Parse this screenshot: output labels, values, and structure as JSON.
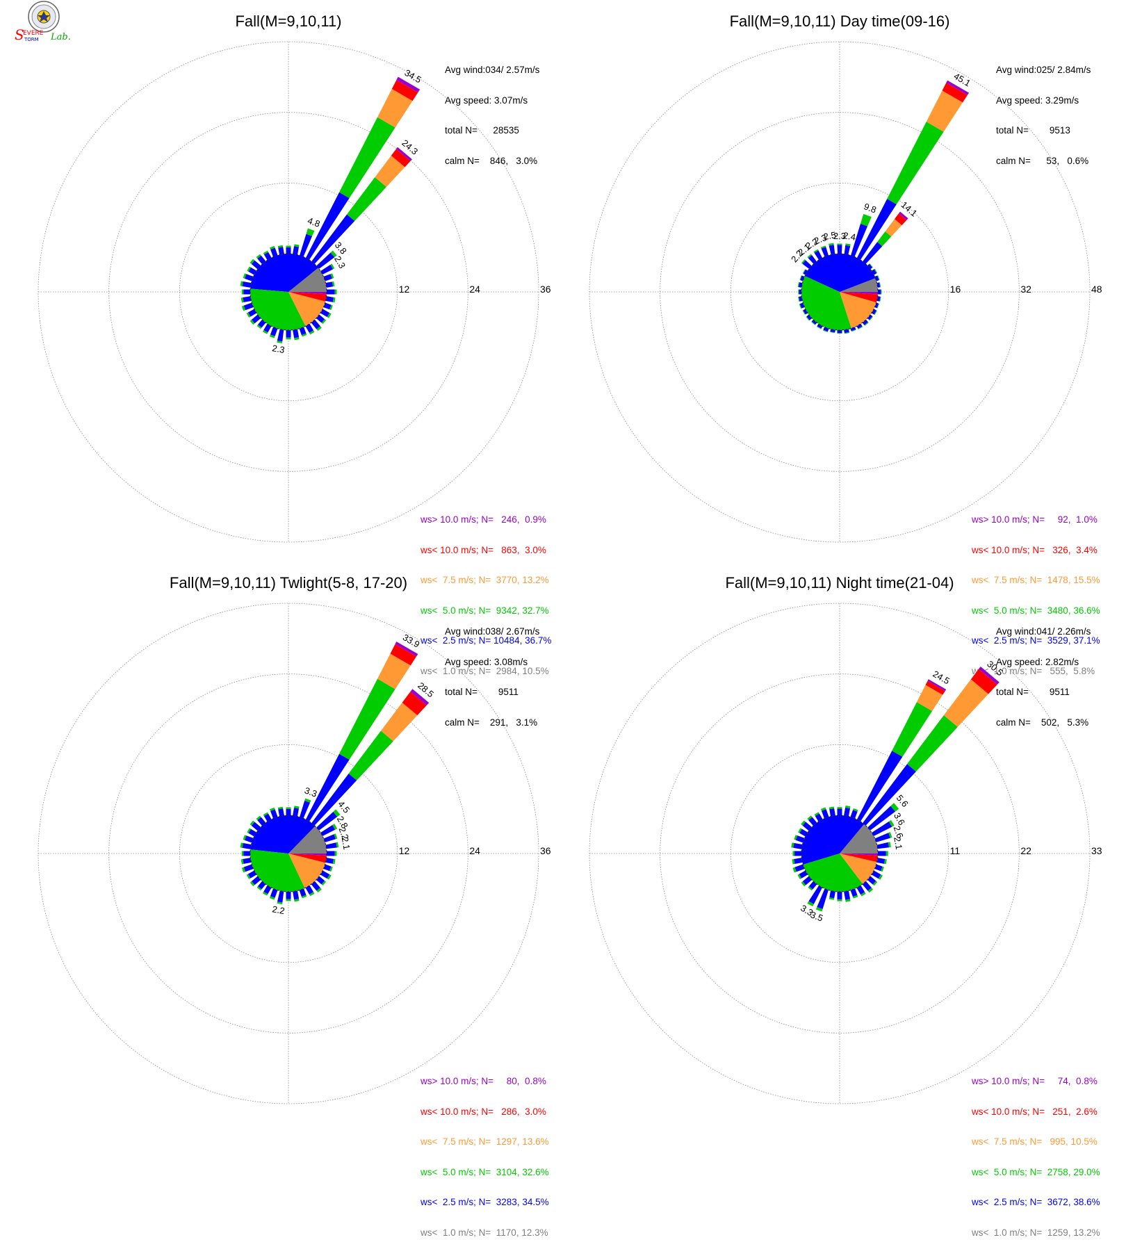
{
  "colors": {
    "gt10": "#9900cc",
    "lt10": "#ff0000",
    "lt7_5": "#ff9933",
    "lt5": "#00cc00",
    "lt2_5": "#0000ff",
    "lt1": "#808080",
    "grid": "#888888"
  },
  "logo": {
    "text_s": "S",
    "text_evere": "EVERE",
    "text_torm": "TORM",
    "text_lab": "Lab."
  },
  "chart_data": [
    {
      "type": "windrose",
      "title": "Fall(M=9,10,11)",
      "info": [
        "Avg wind:034/ 2.57m/s",
        "Avg speed: 3.07m/s",
        "total N=      28535",
        "calm N=    846,   3.0%"
      ],
      "rings": [
        "12",
        "24",
        "36"
      ],
      "rmax": 36,
      "legend": [
        "ws> 10.0 m/s; N=   246,  0.9%",
        "ws< 10.0 m/s; N=   863,  3.0%",
        "ws<  7.5 m/s; N=  3770, 13.2%",
        "ws<  5.0 m/s; N=  9342, 32.7%",
        "ws<  2.5 m/s; N= 10484, 36.7%",
        "ws<  1.0 m/s; N=  2984, 10.5%"
      ],
      "pie": [
        10.5,
        36.7,
        32.7,
        13.2,
        3.0,
        0.9
      ],
      "spokes": [
        {
          "dir": 30,
          "total": 34.5,
          "label": "34.5",
          "segs": [
            12.5,
            26.8,
            32.2,
            33.9,
            34.5
          ]
        },
        {
          "dir": 40,
          "total": 24.3,
          "label": "24.3",
          "segs": [
            10.0,
            17.9,
            22.5,
            23.9,
            24.3
          ]
        },
        {
          "dir": 20,
          "total": 4.8,
          "label": "4.8",
          "segs": [
            3.8,
            4.8,
            4.8,
            4.8,
            4.8
          ]
        },
        {
          "dir": 50,
          "total": 3.8,
          "label": "3.8",
          "segs": [
            3.3,
            3.8,
            3.8,
            3.8,
            3.8
          ]
        },
        {
          "dir": 60,
          "total": 2.3,
          "label": "2.3",
          "segs": [
            2.0,
            2.3,
            2.3,
            2.3,
            2.3
          ]
        },
        {
          "dir": 190,
          "total": 2.3,
          "label": "2.3",
          "segs": [
            2.0,
            2.3,
            2.3,
            2.3,
            2.3
          ]
        }
      ],
      "smallSpokeTotal": 1.6
    },
    {
      "type": "windrose",
      "title": "Fall(M=9,10,11) Day time(09-16)",
      "info": [
        "Avg wind:025/ 2.84m/s",
        "Avg speed: 3.29m/s",
        "total N=        9513",
        "calm N=      53,   0.6%"
      ],
      "rings": [
        "16",
        "32",
        "48"
      ],
      "rmax": 48,
      "legend": [
        "ws> 10.0 m/s; N=     92,  1.0%",
        "ws< 10.0 m/s; N=   326,  3.4%",
        "ws<  7.5 m/s; N=  1478, 15.5%",
        "ws<  5.0 m/s; N=  3480, 36.6%",
        "ws<  2.5 m/s; N=  3529, 37.1%",
        "ws<  1.0 m/s; N=   555,  5.8%"
      ],
      "pie": [
        5.8,
        37.1,
        36.6,
        15.5,
        3.4,
        1.0
      ],
      "spokes": [
        {
          "dir": 30,
          "total": 45.1,
          "label": "45.1",
          "segs": [
            15.0,
            34.6,
            42.5,
            44.5,
            45.1
          ]
        },
        {
          "dir": 40,
          "total": 14.1,
          "label": "14.1",
          "segs": [
            5.5,
            8.5,
            12.0,
            13.6,
            14.1
          ]
        },
        {
          "dir": 20,
          "total": 9.8,
          "label": "9.8",
          "segs": [
            7.5,
            9.8,
            9.8,
            9.8,
            9.8
          ]
        },
        {
          "dir": 10,
          "total": 2.4,
          "label": "2.4",
          "segs": [
            2.0,
            2.4,
            2.4,
            2.4,
            2.4
          ]
        },
        {
          "dir": 0,
          "total": 2.3,
          "label": "2.3",
          "segs": [
            2.0,
            2.3,
            2.3,
            2.3,
            2.3
          ]
        },
        {
          "dir": 350,
          "total": 2.5,
          "label": "2.5",
          "segs": [
            2.1,
            2.5,
            2.5,
            2.5,
            2.5
          ]
        },
        {
          "dir": 340,
          "total": 2.3,
          "label": "2.3",
          "segs": [
            2.0,
            2.3,
            2.3,
            2.3,
            2.3
          ]
        },
        {
          "dir": 330,
          "total": 2.2,
          "label": "2.2",
          "segs": [
            1.9,
            2.2,
            2.2,
            2.2,
            2.2
          ]
        },
        {
          "dir": 320,
          "total": 2.1,
          "label": "2.1",
          "segs": [
            1.8,
            2.1,
            2.1,
            2.1,
            2.1
          ]
        },
        {
          "dir": 310,
          "total": 2.2,
          "label": "2.2",
          "segs": [
            1.9,
            2.2,
            2.2,
            2.2,
            2.2
          ]
        }
      ],
      "smallSpokeTotal": 0.8
    },
    {
      "type": "windrose",
      "title": "Fall(M=9,10,11) Twlight(5-8, 17-20)",
      "info": [
        "Avg wind:038/ 2.67m/s",
        "Avg speed: 3.08m/s",
        "total N=        9511",
        "calm N=    291,   3.1%"
      ],
      "rings": [
        "12",
        "24",
        "36"
      ],
      "rmax": 36,
      "legend": [
        "ws> 10.0 m/s; N=     80,  0.8%",
        "ws< 10.0 m/s; N=   286,  3.0%",
        "ws<  7.5 m/s; N=  1297, 13.6%",
        "ws<  5.0 m/s; N=  3104, 32.6%",
        "ws<  2.5 m/s; N=  3283, 34.5%",
        "ws<  1.0 m/s; N=  1170, 12.3%"
      ],
      "pie": [
        12.3,
        34.5,
        32.6,
        13.6,
        3.0,
        0.8
      ],
      "spokes": [
        {
          "dir": 30,
          "total": 33.9,
          "label": "33.9",
          "segs": [
            12.5,
            26.8,
            31.6,
            33.4,
            33.9
          ]
        },
        {
          "dir": 40,
          "total": 28.5,
          "label": "28.5",
          "segs": [
            10.5,
            19.6,
            25.6,
            27.9,
            28.5
          ]
        },
        {
          "dir": 20,
          "total": 3.3,
          "label": "3.3",
          "segs": [
            2.9,
            3.3,
            3.3,
            3.3,
            3.3
          ]
        },
        {
          "dir": 50,
          "total": 4.5,
          "label": "4.5",
          "segs": [
            3.9,
            4.5,
            4.5,
            4.5,
            4.5
          ]
        },
        {
          "dir": 60,
          "total": 2.8,
          "label": "2.8",
          "segs": [
            2.4,
            2.8,
            2.8,
            2.8,
            2.8
          ]
        },
        {
          "dir": 70,
          "total": 2.2,
          "label": "2.2",
          "segs": [
            1.9,
            2.2,
            2.2,
            2.2,
            2.2
          ]
        },
        {
          "dir": 80,
          "total": 2.1,
          "label": "2.1",
          "segs": [
            1.8,
            2.1,
            2.1,
            2.1,
            2.1
          ]
        },
        {
          "dir": 190,
          "total": 2.2,
          "label": "2.2",
          "segs": [
            1.9,
            2.2,
            2.2,
            2.2,
            2.2
          ]
        }
      ],
      "smallSpokeTotal": 1.6
    },
    {
      "type": "windrose",
      "title": "Fall(M=9,10,11) Night time(21-04)",
      "info": [
        "Avg wind:041/ 2.26m/s",
        "Avg speed: 2.82m/s",
        "total N=        9511",
        "calm N=    502,   5.3%"
      ],
      "rings": [
        "11",
        "22",
        "33"
      ],
      "rmax": 33,
      "legend": [
        "ws> 10.0 m/s; N=     74,  0.8%",
        "ws< 10.0 m/s; N=   251,  2.6%",
        "ws<  7.5 m/s; N=   995, 10.5%",
        "ws<  5.0 m/s; N=  2758, 29.0%",
        "ws<  2.5 m/s; N=  3672, 38.6%",
        "ws<  1.0 m/s; N=  1259, 13.2%"
      ],
      "pie": [
        13.2,
        38.6,
        29.0,
        10.5,
        2.6,
        0.8
      ],
      "spokes": [
        {
          "dir": 30,
          "total": 24.5,
          "label": "24.5",
          "segs": [
            12.0,
            20.5,
            23.5,
            24.2,
            24.5
          ]
        },
        {
          "dir": 40,
          "total": 30.5,
          "label": "30.5",
          "segs": [
            11.5,
            21.0,
            28.0,
            30.0,
            30.5
          ]
        },
        {
          "dir": 50,
          "total": 5.6,
          "label": "5.6",
          "segs": [
            4.9,
            5.6,
            5.6,
            5.6,
            5.6
          ]
        },
        {
          "dir": 60,
          "total": 3.6,
          "label": "3.6",
          "segs": [
            3.2,
            3.6,
            3.6,
            3.6,
            3.6
          ]
        },
        {
          "dir": 70,
          "total": 2.6,
          "label": "2.6",
          "segs": [
            2.3,
            2.6,
            2.6,
            2.6,
            2.6
          ]
        },
        {
          "dir": 80,
          "total": 2.1,
          "label": "2.1",
          "segs": [
            1.8,
            2.1,
            2.1,
            2.1,
            2.1
          ]
        },
        {
          "dir": 200,
          "total": 3.5,
          "label": "3.5",
          "segs": [
            3.1,
            3.5,
            3.5,
            3.5,
            3.5
          ]
        },
        {
          "dir": 210,
          "total": 3.3,
          "label": "3.3",
          "segs": [
            2.9,
            3.3,
            3.3,
            3.3,
            3.3
          ]
        }
      ],
      "smallSpokeTotal": 1.5
    }
  ]
}
